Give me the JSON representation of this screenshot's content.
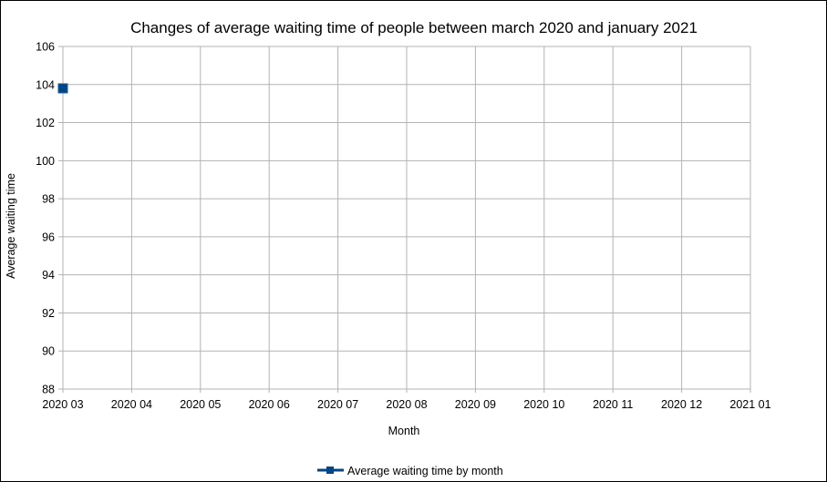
{
  "chart_data": {
    "type": "line",
    "title": "Changes of average waiting time of people between march 2020 and january 2021",
    "xlabel": "Month",
    "ylabel": "Average waiting time",
    "categories": [
      "2020 03",
      "2020 04",
      "2020 05",
      "2020 06",
      "2020 07",
      "2020 08",
      "2020 09",
      "2020 10",
      "2020 11",
      "2020 12",
      "2021 01"
    ],
    "y_ticks": [
      88,
      90,
      92,
      94,
      96,
      98,
      100,
      102,
      104,
      106
    ],
    "ylim": [
      88,
      106
    ],
    "grid": true,
    "legend_position": "bottom",
    "series": [
      {
        "name": "Average waiting time by month",
        "color": "#004586",
        "marker": "square",
        "values": [
          103.8,
          null,
          null,
          null,
          null,
          null,
          null,
          null,
          null,
          null,
          null
        ]
      }
    ]
  }
}
